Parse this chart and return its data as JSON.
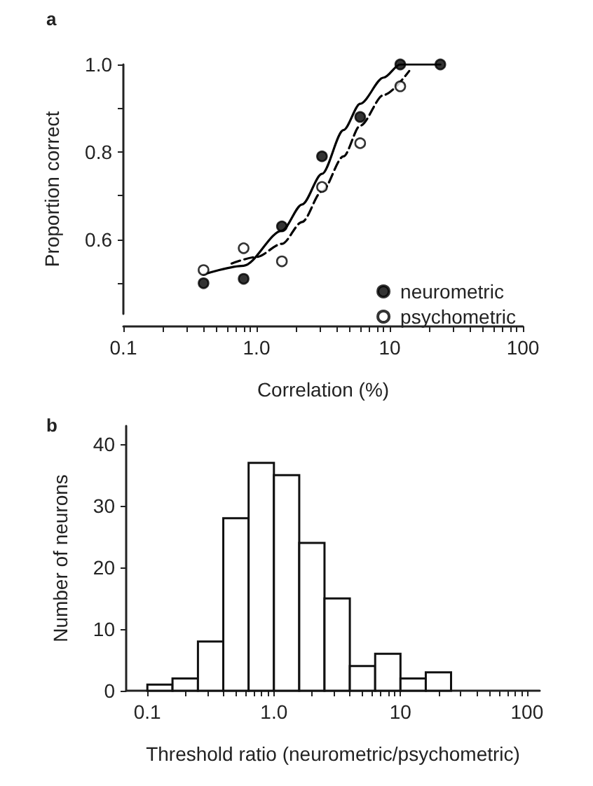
{
  "chart_data": [
    {
      "type": "scatter",
      "title": "a",
      "xlabel": "Correlation (%)",
      "ylabel": "Proportion correct",
      "log": "x",
      "xlim": [
        0.1,
        100
      ],
      "ylim": [
        0.43,
        1.0
      ],
      "xticks": [
        0.1,
        {
          "value": 0.2,
          "label": null
        },
        {
          "value": 0.3,
          "label": null
        },
        {
          "value": 0.4,
          "label": null
        },
        {
          "value": 0.5,
          "label": null
        },
        {
          "value": 0.6,
          "label": null
        },
        {
          "value": 0.7,
          "label": null
        },
        {
          "value": 0.8,
          "label": null
        },
        {
          "value": 0.9,
          "label": null
        },
        {
          "value": 1,
          "label": "1.0"
        },
        {
          "value": 2,
          "label": null
        },
        {
          "value": 3,
          "label": null
        },
        {
          "value": 4,
          "label": null
        },
        {
          "value": 5,
          "label": null
        },
        {
          "value": 6,
          "label": null
        },
        {
          "value": 7,
          "label": null
        },
        {
          "value": 8,
          "label": null
        },
        {
          "value": 9,
          "label": null
        },
        10,
        {
          "value": 20,
          "label": null
        },
        {
          "value": 30,
          "label": null
        },
        {
          "value": 40,
          "label": null
        },
        {
          "value": 50,
          "label": null
        },
        {
          "value": 60,
          "label": null
        },
        {
          "value": 70,
          "label": null
        },
        {
          "value": 80,
          "label": null
        },
        {
          "value": 90,
          "label": null
        },
        100
      ],
      "yticks": [
        {
          "value": 0.5,
          "label": null
        },
        0.6,
        {
          "value": 0.7,
          "label": null
        },
        0.8,
        {
          "value": 0.9,
          "label": null
        },
        {
          "value": 1,
          "label": "1.0"
        }
      ],
      "legend": "bottom right",
      "grid": false,
      "series": [
        {
          "name": "neurometric",
          "type": "scatter",
          "marker": "circle",
          "color": "#000000",
          "x": [
            0.4,
            0.8,
            1.55,
            3.1,
            6,
            12,
            24
          ],
          "values": [
            0.5,
            0.51,
            0.63,
            0.79,
            0.88,
            1.0,
            1.0
          ]
        },
        {
          "name": "psychometric",
          "type": "scatter",
          "marker": "circle",
          "color": "#ffffff",
          "x": [
            0.4,
            0.8,
            1.55,
            3.1,
            6,
            12
          ],
          "values": [
            0.53,
            0.58,
            0.55,
            0.72,
            0.82,
            0.95
          ]
        },
        {
          "type": "line",
          "line_style": "solid",
          "color": "#000000",
          "x": [
            0.4,
            0.8,
            1.55,
            2.2,
            3.1,
            4.5,
            6,
            9,
            12,
            24
          ],
          "values": [
            0.52,
            0.54,
            0.62,
            0.68,
            0.75,
            0.85,
            0.91,
            0.97,
            1.0,
            1.0
          ]
        },
        {
          "type": "line",
          "line_style": "dashed",
          "color": "#000000",
          "x": [
            0.65,
            1.0,
            1.55,
            2.2,
            3.1,
            4.5,
            6,
            9,
            14
          ],
          "values": [
            0.545,
            0.56,
            0.59,
            0.64,
            0.71,
            0.79,
            0.86,
            0.93,
            0.985
          ]
        }
      ]
    },
    {
      "type": "histogram",
      "title": "b",
      "xlabel": "Threshold ratio (neurometric/psychometric)",
      "ylabel": "Number of neurons",
      "log": "x",
      "xlim": [
        0.068,
        126
      ],
      "ylim": [
        0,
        43
      ],
      "color": "#ffffff",
      "xticks": [
        0.1,
        {
          "value": 0.2,
          "label": null
        },
        {
          "value": 0.3,
          "label": null
        },
        {
          "value": 0.4,
          "label": null
        },
        {
          "value": 0.5,
          "label": null
        },
        {
          "value": 0.6,
          "label": null
        },
        {
          "value": 0.7,
          "label": null
        },
        {
          "value": 0.8,
          "label": null
        },
        {
          "value": 0.9,
          "label": null
        },
        {
          "value": 1,
          "label": "1.0"
        },
        {
          "value": 2,
          "label": null
        },
        {
          "value": 3,
          "label": null
        },
        {
          "value": 4,
          "label": null
        },
        {
          "value": 5,
          "label": null
        },
        {
          "value": 6,
          "label": null
        },
        {
          "value": 7,
          "label": null
        },
        {
          "value": 8,
          "label": null
        },
        {
          "value": 9,
          "label": null
        },
        10,
        {
          "value": 20,
          "label": null
        },
        {
          "value": 30,
          "label": null
        },
        {
          "value": 40,
          "label": null
        },
        {
          "value": 50,
          "label": null
        },
        {
          "value": 60,
          "label": null
        },
        {
          "value": 70,
          "label": null
        },
        {
          "value": 80,
          "label": null
        },
        {
          "value": 90,
          "label": null
        },
        100
      ],
      "yticks": [
        0,
        10,
        20,
        30,
        40
      ],
      "grid": false,
      "bins": [
        0.1,
        0.158,
        0.251,
        0.398,
        0.631,
        1.0,
        1.585,
        2.51,
        3.98,
        6.31,
        10,
        15.85,
        25.1
      ],
      "values": [
        1,
        2,
        8,
        28,
        37,
        35,
        24,
        15,
        4,
        6,
        2,
        3
      ]
    }
  ]
}
